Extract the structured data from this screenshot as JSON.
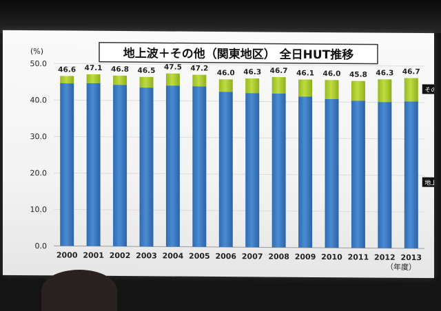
{
  "chart_data": {
    "type": "bar",
    "title": "地上波＋その他（関東地区） 全日HUT推移",
    "y_unit": "(%)",
    "x_unit": "（年度）",
    "categories": [
      "2000",
      "2001",
      "2002",
      "2003",
      "2004",
      "2005",
      "2006",
      "2007",
      "2008",
      "2009",
      "2010",
      "2011",
      "2012",
      "2013"
    ],
    "series": [
      {
        "name": "地上波",
        "values": [
          44.6,
          44.7,
          44.3,
          43.6,
          44.2,
          44.0,
          42.6,
          42.3,
          42.2,
          41.4,
          40.8,
          40.4,
          40.1,
          40.3
        ]
      },
      {
        "name": "その他",
        "values": [
          2.0,
          2.4,
          2.5,
          2.9,
          3.3,
          3.2,
          3.4,
          4.0,
          4.5,
          4.7,
          5.2,
          5.4,
          6.2,
          6.4
        ]
      }
    ],
    "data_labels": [
      "46.6",
      "47.1",
      "46.8",
      "46.5",
      "47.5",
      "47.2",
      "46.0",
      "46.3",
      "46.7",
      "46.1",
      "46.0",
      "45.8",
      "46.3",
      "46.7"
    ],
    "y_ticks": [
      "0.0",
      "10.0",
      "20.0",
      "30.0",
      "40.0",
      "50.0"
    ],
    "ylim": [
      0,
      50
    ],
    "colors": {
      "地上波": "#3f7fc6",
      "その他": "#b2d236"
    },
    "grid": true
  }
}
